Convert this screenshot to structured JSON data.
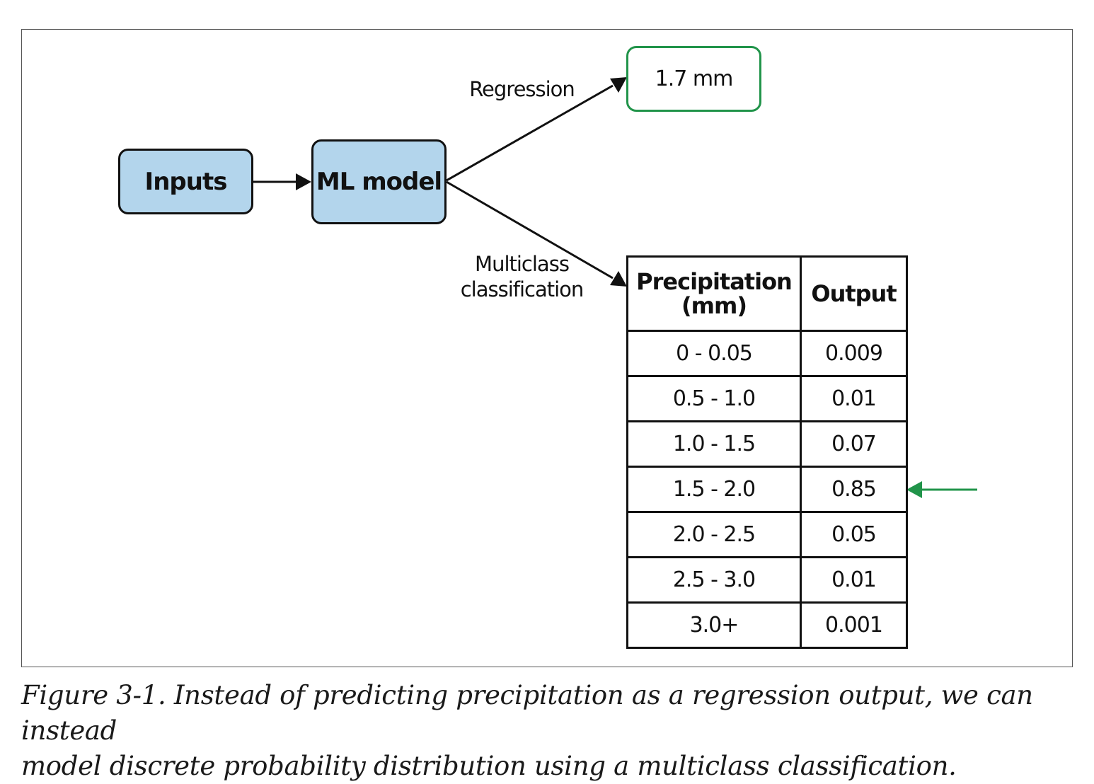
{
  "diagram": {
    "nodes": {
      "inputs": "Inputs",
      "model": "ML model",
      "regression_result": "1.7 mm"
    },
    "edge_labels": {
      "regression": "Regression",
      "multiclass": [
        "Multiclass",
        "classification"
      ]
    },
    "colors": {
      "node_fill": "#b3d5ec",
      "highlight": "#21944a",
      "stroke": "#111111"
    }
  },
  "table": {
    "headers": {
      "range": [
        "Precipitation",
        "(mm)"
      ],
      "output": "Output"
    },
    "rows": [
      {
        "range": "0 - 0.05",
        "output": "0.009"
      },
      {
        "range": "0.5 - 1.0",
        "output": "0.01"
      },
      {
        "range": "1.0 - 1.5",
        "output": "0.07"
      },
      {
        "range": "1.5 - 2.0",
        "output": "0.85"
      },
      {
        "range": "2.0 - 2.5",
        "output": "0.05"
      },
      {
        "range": "2.5 - 3.0",
        "output": "0.01"
      },
      {
        "range": "3.0+",
        "output": "0.001"
      }
    ]
  },
  "caption": {
    "line1": "Figure 3-1. Instead of predicting precipitation as a regression output, we can instead",
    "line2": "model discrete probability distribution using a multiclass classification."
  }
}
